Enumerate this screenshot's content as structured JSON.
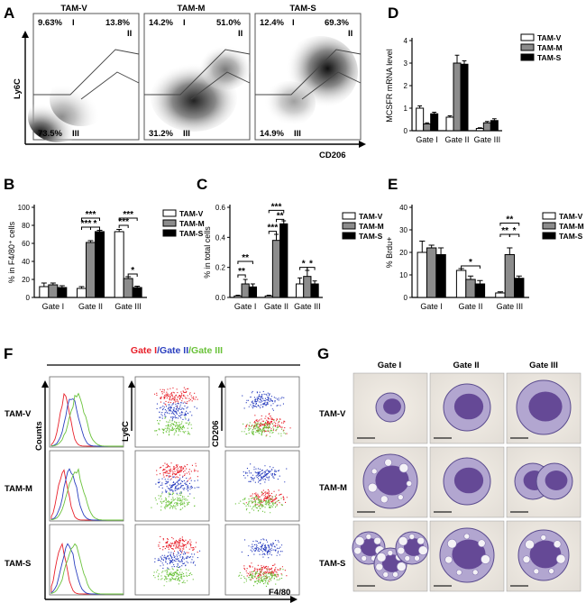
{
  "panels": {
    "A": {
      "label": "A",
      "groups": [
        "TAM-V",
        "TAM-M",
        "TAM-S"
      ],
      "xlabel": "CD206",
      "ylabel": "Ly6C",
      "gates": [
        {
          "I": "9.63%",
          "I_lab": "I",
          "II": "13.8%",
          "II_lab": "II",
          "III": "73.5%",
          "III_lab": "III"
        },
        {
          "I": "14.2%",
          "I_lab": "I",
          "II": "51.0%",
          "II_lab": "II",
          "III": "31.2%",
          "III_lab": "III"
        },
        {
          "I": "12.4%",
          "I_lab": "I",
          "II": "69.3%",
          "II_lab": "II",
          "III": "14.9%",
          "III_lab": "III"
        }
      ]
    },
    "B": {
      "label": "B"
    },
    "C": {
      "label": "C"
    },
    "D": {
      "label": "D"
    },
    "E": {
      "label": "E"
    },
    "F": {
      "label": "F",
      "title_parts": [
        "Gate I",
        "/Gate II",
        "/Gate III"
      ],
      "title_colors": [
        "#e8202a",
        "#2a3fbf",
        "#6ac23a"
      ],
      "rows": [
        "TAM-V",
        "TAM-M",
        "TAM-S"
      ],
      "ylabels": [
        "Counts",
        "Ly6C",
        "CD206"
      ],
      "xlabel": "F4/80"
    },
    "G": {
      "label": "G",
      "cols": [
        "Gate I",
        "Gate II",
        "Gate III"
      ],
      "rows": [
        "TAM-V",
        "TAM-M",
        "TAM-S"
      ]
    }
  },
  "legend": [
    "TAM-V",
    "TAM-M",
    "TAM-S"
  ],
  "colors": {
    "v": "#ffffff",
    "m": "#8c8c8c",
    "s": "#000000"
  },
  "chart_data": [
    {
      "id": "D",
      "type": "bar",
      "categories": [
        "Gate I",
        "Gate II",
        "Gate III"
      ],
      "ylabel": "MCSFR mRNA level",
      "ylim": [
        0,
        4
      ],
      "yticks": [
        "0",
        "1",
        "2",
        "3",
        "4"
      ],
      "series": [
        {
          "name": "TAM-V",
          "values": [
            1.0,
            0.6,
            0.1
          ],
          "err": [
            0.1,
            0.06,
            0.03
          ]
        },
        {
          "name": "TAM-M",
          "values": [
            0.3,
            3.0,
            0.35
          ],
          "err": [
            0.05,
            0.35,
            0.06
          ]
        },
        {
          "name": "TAM-S",
          "values": [
            0.75,
            2.95,
            0.45
          ],
          "err": [
            0.07,
            0.15,
            0.08
          ]
        }
      ],
      "sig": []
    },
    {
      "id": "B",
      "type": "bar",
      "categories": [
        "Gate I",
        "Gate II",
        "Gate III"
      ],
      "ylabel": "% in F4/80⁺ cells",
      "ylim": [
        0,
        100
      ],
      "yticks": [
        "0",
        "20",
        "40",
        "60",
        "80",
        "100"
      ],
      "series": [
        {
          "name": "TAM-V",
          "values": [
            12,
            10,
            73
          ],
          "err": [
            4,
            2,
            2.5
          ]
        },
        {
          "name": "TAM-M",
          "values": [
            14,
            61,
            21
          ],
          "err": [
            2,
            2,
            2
          ]
        },
        {
          "name": "TAM-S",
          "values": [
            11,
            73,
            11
          ],
          "err": [
            2,
            1.5,
            1.5
          ]
        }
      ],
      "sig": [
        {
          "a": [
            1,
            0
          ],
          "b": [
            1,
            1
          ],
          "y": 78,
          "t": "***"
        },
        {
          "a": [
            1,
            1
          ],
          "b": [
            1,
            2
          ],
          "y": 78,
          "t": "*"
        },
        {
          "a": [
            1,
            0
          ],
          "b": [
            1,
            2
          ],
          "y": 88,
          "t": "***"
        },
        {
          "a": [
            2,
            0
          ],
          "b": [
            2,
            1
          ],
          "y": 80,
          "t": "***"
        },
        {
          "a": [
            2,
            0
          ],
          "b": [
            2,
            2
          ],
          "y": 88,
          "t": "***"
        },
        {
          "a": [
            2,
            1
          ],
          "b": [
            2,
            2
          ],
          "y": 26,
          "t": "*"
        }
      ]
    },
    {
      "id": "C",
      "type": "bar",
      "categories": [
        "Gate I",
        "Gate II",
        "Gate III"
      ],
      "ylabel": "% in total cells",
      "ylim": [
        0,
        0.6
      ],
      "yticks": [
        "0.0",
        "0.2",
        "0.4",
        "0.6"
      ],
      "series": [
        {
          "name": "TAM-V",
          "values": [
            0.01,
            0.01,
            0.09
          ],
          "err": [
            0.005,
            0.005,
            0.04
          ]
        },
        {
          "name": "TAM-M",
          "values": [
            0.09,
            0.38,
            0.14
          ],
          "err": [
            0.03,
            0.04,
            0.04
          ]
        },
        {
          "name": "TAM-S",
          "values": [
            0.07,
            0.49,
            0.09
          ],
          "err": [
            0.02,
            0.02,
            0.02
          ]
        }
      ],
      "sig": [
        {
          "a": [
            0,
            0
          ],
          "b": [
            0,
            1
          ],
          "y": 0.15,
          "t": "**"
        },
        {
          "a": [
            0,
            0
          ],
          "b": [
            0,
            2
          ],
          "y": 0.24,
          "t": "**"
        },
        {
          "a": [
            1,
            0
          ],
          "b": [
            1,
            1
          ],
          "y": 0.44,
          "t": "***"
        },
        {
          "a": [
            1,
            1
          ],
          "b": [
            1,
            2
          ],
          "y": 0.52,
          "t": "**"
        },
        {
          "a": [
            1,
            0
          ],
          "b": [
            1,
            2
          ],
          "y": 0.58,
          "t": "***"
        },
        {
          "a": [
            2,
            0
          ],
          "b": [
            2,
            1
          ],
          "y": 0.2,
          "t": "*"
        },
        {
          "a": [
            2,
            1
          ],
          "b": [
            2,
            2
          ],
          "y": 0.2,
          "t": "*"
        }
      ]
    },
    {
      "id": "E",
      "type": "bar",
      "categories": [
        "Gate I",
        "Gate II",
        "Gate III"
      ],
      "ylabel": "% Brdu+",
      "ylim": [
        0,
        40
      ],
      "yticks": [
        "0",
        "10",
        "20",
        "30",
        "40"
      ],
      "series": [
        {
          "name": "TAM-V",
          "values": [
            20,
            12,
            2
          ],
          "err": [
            5,
            0.8,
            0.5
          ]
        },
        {
          "name": "TAM-M",
          "values": [
            22,
            8,
            19
          ],
          "err": [
            1.2,
            1.5,
            3
          ]
        },
        {
          "name": "TAM-S",
          "values": [
            19,
            6,
            8.5
          ],
          "err": [
            3,
            1.5,
            1
          ]
        }
      ],
      "sig": [
        {
          "a": [
            1,
            0
          ],
          "b": [
            1,
            2
          ],
          "y": 14,
          "t": "*"
        },
        {
          "a": [
            2,
            0
          ],
          "b": [
            2,
            1
          ],
          "y": 28,
          "t": "**"
        },
        {
          "a": [
            2,
            1
          ],
          "b": [
            2,
            2
          ],
          "y": 28,
          "t": "*"
        },
        {
          "a": [
            2,
            0
          ],
          "b": [
            2,
            2
          ],
          "y": 33,
          "t": "**"
        }
      ]
    }
  ]
}
